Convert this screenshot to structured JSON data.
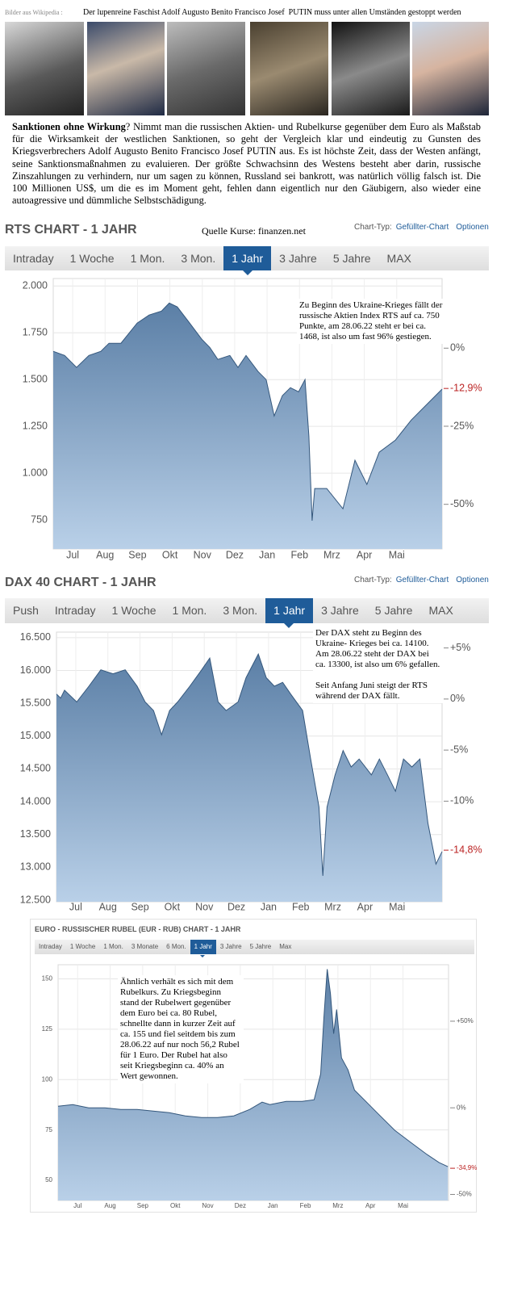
{
  "header": {
    "source_note": "Bilder aus Wikipedia :",
    "headline": "Der lupenreine Faschist Adolf Augusto Benito Francisco Josef  PUTIN muss unter allen Umständen gestoppt werden"
  },
  "article": {
    "lead": "Sanktionen ohne Wirkung",
    "text": "? Nimmt man die russischen Aktien- und Rubelkurse gegenüber dem Euro als Maßstab für die Wirksamkeit der westlichen Sanktionen, so geht der Vergleich klar und eindeutig zu Gunsten des Kriegsverbrechers Adolf Augusto Benito Francisco Josef PUTIN aus. Es ist höchste Zeit, dass der Westen anfängt, seine Sanktionsmaßnahmen zu evaluieren. Der größte Schwachsinn des Westens besteht aber darin, russische Zinszahlungen zu verhindern, nur um sagen zu können, Russland sei bankrott, was natürlich völlig falsch ist. Die 100 Millionen US$, um die es im Moment geht, fehlen dann eigentlich nur den Gäubigern, also wieder eine autoagressive und dümmliche Selbstschädigung."
  },
  "chart_data": [
    {
      "type": "area",
      "title": "RTS CHART - 1 JAHR",
      "source": "Quelle Kurse: finanzen.net",
      "chart_type_label": "Chart-Typ:",
      "chart_type": "Gefüllter-Chart",
      "options": "Optionen",
      "tabs": [
        "Intraday",
        "1 Woche",
        "1 Mon.",
        "3 Mon.",
        "1 Jahr",
        "3 Jahre",
        "5 Jahre",
        "MAX"
      ],
      "active_tab": 4,
      "annotation": "Zu Beginn des Ukraine-Krieges fällt der russische Aktien Index RTS auf ca. 750 Punkte, am 28.06.22 steht er bei ca. 1468, ist also um fast 96% gestiegen.",
      "color": "#5b7fa6",
      "grid": true,
      "xlim": [
        0,
        12
      ],
      "xticks": [
        {
          "value": 0.6,
          "label": "Jul"
        },
        {
          "value": 1.6,
          "label": "Aug"
        },
        {
          "value": 2.6,
          "label": "Sep"
        },
        {
          "value": 3.6,
          "label": "Okt"
        },
        {
          "value": 4.6,
          "label": "Nov"
        },
        {
          "value": 5.6,
          "label": "Dez"
        },
        {
          "value": 6.6,
          "label": "Jan"
        },
        {
          "value": 7.6,
          "label": "Feb"
        },
        {
          "value": 8.6,
          "label": "Mrz"
        },
        {
          "value": 9.6,
          "label": "Apr"
        },
        {
          "value": 10.6,
          "label": "Mai"
        }
      ],
      "ylim": [
        595,
        2040
      ],
      "yticks": [
        750,
        {
          "value": 1000,
          "label": "1.000"
        },
        {
          "value": 1250,
          "label": "1.250"
        },
        {
          "value": 1500,
          "label": "1.500"
        },
        {
          "value": 1750,
          "label": "1.750"
        },
        {
          "value": 2000,
          "label": "2.000"
        }
      ],
      "y2lim": [
        -64.3,
        22.3
      ],
      "y2ticks": [
        {
          "value": 0,
          "label": "0%"
        },
        {
          "value": -25,
          "label": "-25%"
        },
        {
          "value": -50,
          "label": "-50%"
        }
      ],
      "y2_marker": {
        "value": -12.9,
        "label": "-12,9%"
      },
      "x": [
        0,
        0.35,
        0.72,
        1.1,
        1.47,
        1.72,
        2.09,
        2.59,
        2.96,
        3.34,
        3.58,
        3.83,
        4.21,
        4.58,
        4.83,
        5.08,
        5.45,
        5.7,
        5.95,
        6.32,
        6.57,
        6.82,
        7.07,
        7.32,
        7.57,
        7.77,
        7.89,
        7.99,
        8.07,
        8.44,
        8.94,
        9.31,
        9.68,
        10.06,
        10.56,
        11.05,
        11.55,
        12
      ],
      "values": [
        1651,
        1629,
        1565,
        1629,
        1651,
        1694,
        1694,
        1802,
        1845,
        1866,
        1909,
        1888,
        1802,
        1716,
        1672,
        1608,
        1629,
        1565,
        1629,
        1543,
        1500,
        1306,
        1414,
        1457,
        1435,
        1500,
        1198,
        746,
        918,
        918,
        810,
        1069,
        940,
        1112,
        1177,
        1284,
        1371,
        1449
      ]
    },
    {
      "type": "area",
      "title": "DAX 40 CHART - 1 JAHR",
      "chart_type_label": "Chart-Typ:",
      "chart_type": "Gefüllter-Chart",
      "options": "Optionen",
      "tabs": [
        "Push",
        "Intraday",
        "1 Woche",
        "1 Mon.",
        "3 Mon.",
        "1 Jahr",
        "3 Jahre",
        "5 Jahre",
        "MAX"
      ],
      "active_tab": 5,
      "annotation": "Der DAX steht zu Beginn des Ukraine- Krieges bei ca. 14100. Am 28.06.22 steht der DAX bei ca. 13300, ist also um 6% gefallen.\n\nSeit Anfang Juni steigt der RTS während der DAX fällt.",
      "color": "#5b7fa6",
      "grid": true,
      "xlim": [
        0,
        12
      ],
      "xticks": [
        {
          "value": 0.6,
          "label": "Jul"
        },
        {
          "value": 1.6,
          "label": "Aug"
        },
        {
          "value": 2.6,
          "label": "Sep"
        },
        {
          "value": 3.6,
          "label": "Okt"
        },
        {
          "value": 4.6,
          "label": "Nov"
        },
        {
          "value": 5.6,
          "label": "Dez"
        },
        {
          "value": 6.6,
          "label": "Jan"
        },
        {
          "value": 7.6,
          "label": "Feb"
        },
        {
          "value": 8.6,
          "label": "Mrz"
        },
        {
          "value": 9.6,
          "label": "Apr"
        },
        {
          "value": 10.6,
          "label": "Mai"
        }
      ],
      "ylim": [
        12475,
        16585
      ],
      "yticks": [
        {
          "value": 12500,
          "label": "12.500"
        },
        {
          "value": 13000,
          "label": "13.000"
        },
        {
          "value": 13500,
          "label": "13.500"
        },
        {
          "value": 14000,
          "label": "14.000"
        },
        {
          "value": 14500,
          "label": "14.500"
        },
        {
          "value": 15000,
          "label": "15.000"
        },
        {
          "value": 15500,
          "label": "15.500"
        },
        {
          "value": 16000,
          "label": "16.000"
        },
        {
          "value": 16500,
          "label": "16.500"
        }
      ],
      "y2lim": [
        -19.85,
        6.55
      ],
      "y2ticks": [
        {
          "value": 5,
          "label": "+5%"
        },
        {
          "value": 0,
          "label": "0%"
        },
        {
          "value": -5,
          "label": "-5%"
        },
        {
          "value": -10,
          "label": "-10%"
        }
      ],
      "y2_marker": {
        "value": -14.8,
        "label": "-14,8%"
      },
      "x": [
        0,
        0.13,
        0.25,
        0.63,
        1.01,
        1.38,
        1.76,
        2.14,
        2.51,
        2.76,
        3.02,
        3.27,
        3.52,
        3.77,
        4.15,
        4.52,
        4.77,
        5.03,
        5.28,
        5.65,
        5.9,
        6.28,
        6.53,
        6.78,
        7.04,
        7.29,
        7.66,
        7.91,
        8.17,
        8.29,
        8.42,
        8.67,
        8.92,
        9.17,
        9.42,
        9.8,
        10.05,
        10.3,
        10.55,
        10.8,
        11.06,
        11.31,
        11.56,
        11.81,
        12
      ],
      "values": [
        15640,
        15580,
        15700,
        15520,
        15760,
        16010,
        15950,
        16010,
        15760,
        15520,
        15390,
        15020,
        15390,
        15520,
        15760,
        16010,
        16190,
        15520,
        15390,
        15520,
        15890,
        16250,
        15890,
        15760,
        15820,
        15640,
        15390,
        14650,
        13920,
        12870,
        13920,
        14410,
        14780,
        14530,
        14650,
        14410,
        14650,
        14410,
        14160,
        14650,
        14530,
        14650,
        13670,
        13050,
        13240
      ]
    },
    {
      "type": "area",
      "title": "EURO - RUSSISCHER RUBEL (EUR - RUB) CHART - 1 JAHR",
      "tabs": [
        "Intraday",
        "1 Woche",
        "1 Mon.",
        "3 Monate",
        "6 Mon.",
        "1 Jahr",
        "3 Jahre",
        "5 Jahre",
        "Max"
      ],
      "active_tab": 5,
      "annotation": "Ähnlich verhält es sich mit dem Rubelkurs. Zu Kriegsbeginn stand der Rubelwert gegenüber dem Euro bei ca. 80 Rubel, schnellte dann in kurzer Zeit auf ca. 155 und fiel seitdem bis zum 28.06.22 auf nur noch 56,2 Rubel für 1 Euro. Der Rubel hat also seit Kriegsbeginn ca. 40% an Wert gewonnen.",
      "color": "#5b7fa6",
      "grid": true,
      "xlim": [
        0,
        12
      ],
      "xticks": [
        {
          "value": 0.6,
          "label": "Jul"
        },
        {
          "value": 1.6,
          "label": "Aug"
        },
        {
          "value": 2.6,
          "label": "Sep"
        },
        {
          "value": 3.6,
          "label": "Okt"
        },
        {
          "value": 4.6,
          "label": "Nov"
        },
        {
          "value": 5.6,
          "label": "Dez"
        },
        {
          "value": 6.6,
          "label": "Jan"
        },
        {
          "value": 7.6,
          "label": "Feb"
        },
        {
          "value": 8.6,
          "label": "Mrz"
        },
        {
          "value": 9.6,
          "label": "Apr"
        },
        {
          "value": 10.6,
          "label": "Mai"
        }
      ],
      "ylim": [
        40,
        157
      ],
      "yticks": [
        50,
        75,
        100,
        125,
        150
      ],
      "y2lim": [
        -53.5,
        82.6
      ],
      "y2ticks": [
        {
          "value": 50,
          "label": "+50%"
        },
        {
          "value": 0,
          "label": "0%"
        },
        {
          "value": -50,
          "label": "-50%"
        }
      ],
      "y2_marker": {
        "value": -34.9,
        "label": "-34,9%"
      },
      "x": [
        0,
        0.45,
        0.94,
        1.44,
        1.93,
        2.43,
        2.92,
        3.42,
        3.91,
        4.41,
        4.9,
        5.4,
        5.89,
        6.27,
        6.51,
        7.01,
        7.5,
        7.87,
        8.07,
        8.17,
        8.27,
        8.37,
        8.47,
        8.56,
        8.71,
        8.91,
        9.11,
        9.48,
        9.85,
        10.35,
        10.84,
        11.34,
        11.71,
        11.98
      ],
      "values": [
        86.8,
        87.6,
        86,
        86,
        85.2,
        85.2,
        84.4,
        83.6,
        82,
        81.2,
        81.2,
        82,
        85.2,
        88.8,
        87.6,
        89.2,
        89.2,
        90,
        102.8,
        130.8,
        154.8,
        142.8,
        122.8,
        134.8,
        110.8,
        104.8,
        94.8,
        88.8,
        82.8,
        74.8,
        68.8,
        62.8,
        58.8,
        56.8
      ]
    }
  ]
}
